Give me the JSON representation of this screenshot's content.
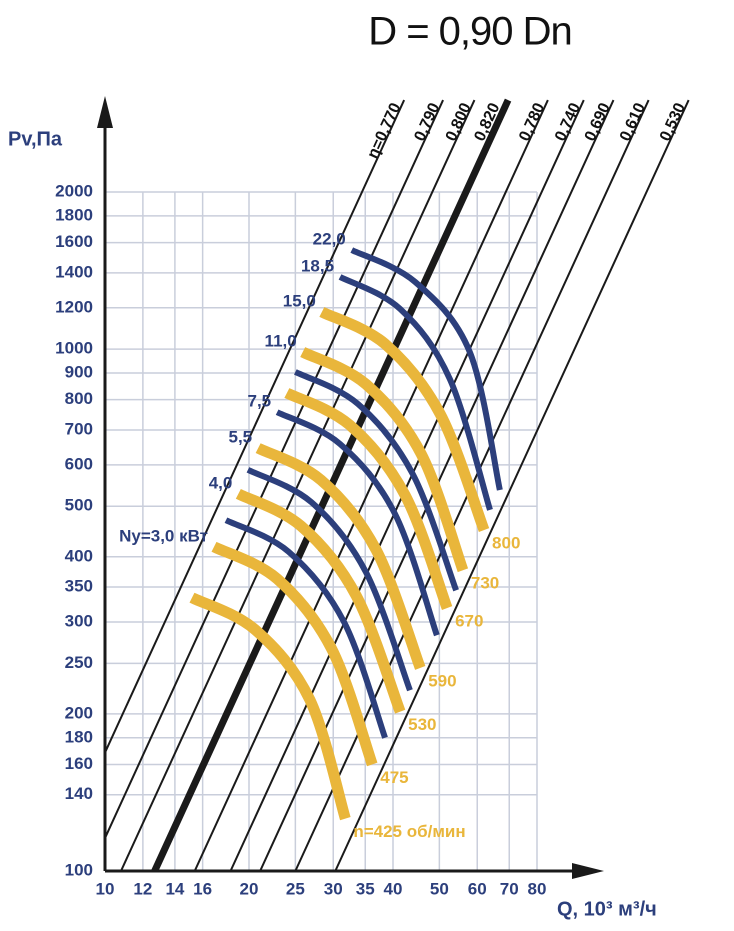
{
  "chart_data": {
    "type": "line",
    "title": "D = 0,90 Dn",
    "x_label": "Q, 10³ м³/ч",
    "y_label": "Pv,Па",
    "log_x": true,
    "log_y": true,
    "grid": true,
    "xlim": [
      10,
      80
    ],
    "xticks": [
      10,
      12,
      14,
      16,
      20,
      25,
      30,
      35,
      40,
      50,
      60,
      70,
      80
    ],
    "ylim": [
      100,
      2000
    ],
    "yticks": [
      100,
      140,
      160,
      180,
      200,
      250,
      300,
      350,
      400,
      500,
      600,
      700,
      800,
      900,
      1000,
      1200,
      1400,
      1600,
      1800,
      2000
    ],
    "efficiency_lines": [
      {
        "label": "η=0,770",
        "x": [
          7.7,
          42.2
        ],
        "y": [
          100,
          3000
        ]
      },
      {
        "label": "0,790",
        "x": [
          9.3,
          50.9
        ],
        "y": [
          100,
          3000
        ]
      },
      {
        "label": "0,800",
        "x": [
          10.8,
          59.2
        ],
        "y": [
          100,
          3000
        ]
      },
      {
        "label": "0,820",
        "x": [
          12.7,
          69.6
        ],
        "y": [
          100,
          3000
        ],
        "bold": true
      },
      {
        "label": "0,780",
        "x": [
          15.4,
          84.3
        ],
        "y": [
          100,
          3000
        ]
      },
      {
        "label": "0,740",
        "x": [
          18.3,
          100.2
        ],
        "y": [
          100,
          3000
        ]
      },
      {
        "label": "0,690",
        "x": [
          21.1,
          115.6
        ],
        "y": [
          100,
          3000
        ]
      },
      {
        "label": "0,610",
        "x": [
          25,
          136.9
        ],
        "y": [
          100,
          3000
        ]
      },
      {
        "label": "0,530",
        "x": [
          30.3,
          166
        ],
        "y": [
          100,
          3000
        ]
      }
    ],
    "series": [
      {
        "name": "n=425 об/мин",
        "color": "#e9b63b",
        "x": [
          15.2,
          20.6,
          26.8,
          31.8
        ],
        "values": [
          334,
          290,
          213,
          126
        ]
      },
      {
        "name": "475",
        "power": "Ny=3,0 кВт",
        "color": "#e9b63b",
        "x": [
          16.9,
          22.9,
          29.8,
          36.2
        ],
        "values": [
          418,
          363,
          266,
          160
        ]
      },
      {
        "name": "530",
        "power": "4,0",
        "color": "#e9b63b",
        "x": [
          19.0,
          25.7,
          33.5,
          41.4
        ],
        "values": [
          528,
          458,
          337,
          202
        ]
      },
      {
        "name": "590",
        "power": "5,5",
        "color": "#e9b63b",
        "x": [
          20.9,
          28.3,
          36.9,
          45.6
        ],
        "values": [
          646,
          561,
          412,
          245
        ]
      },
      {
        "name": "670",
        "color": "#e9b63b",
        "x": [
          24.0,
          32.5,
          42.4,
          51.9
        ],
        "values": [
          824,
          715,
          525,
          319
        ]
      },
      {
        "name": "730",
        "power": "11,0",
        "color": "#e9b63b",
        "x": [
          25.9,
          35.1,
          45.8,
          56.0
        ],
        "values": [
          987,
          857,
          630,
          377
        ]
      },
      {
        "name": "800",
        "power": "15,0",
        "color": "#e9b63b",
        "x": [
          28.4,
          38.5,
          50.2,
          62.0
        ],
        "values": [
          1178,
          1023,
          751,
          450
        ]
      },
      {
        "color": "#2c3f7c",
        "x": [
          17.9,
          24.2,
          31.6,
          38.5
        ],
        "values": [
          470,
          409,
          300,
          180
        ]
      },
      {
        "color": "#2c3f7c",
        "x": [
          19.9,
          27.0,
          35.1,
          43.4
        ],
        "values": [
          587,
          509,
          374,
          222
        ]
      },
      {
        "power": "7,5",
        "color": "#2c3f7c",
        "x": [
          22.9,
          31.0,
          40.4,
          49.4
        ],
        "values": [
          757,
          658,
          483,
          283
        ]
      },
      {
        "color": "#2c3f7c",
        "x": [
          25.0,
          33.8,
          44.0,
          54.2
        ],
        "values": [
          904,
          785,
          576,
          345
        ]
      },
      {
        "power": "18,5",
        "color": "#2c3f7c",
        "x": [
          31.0,
          41.4,
          52.6,
          63.8
        ],
        "values": [
          1375,
          1194,
          876,
          492
        ]
      },
      {
        "power": "22,0",
        "color": "#2c3f7c",
        "x": [
          32.8,
          44.5,
          57.9,
          66.9
        ],
        "values": [
          1548,
          1345,
          987,
          537
        ]
      }
    ]
  }
}
